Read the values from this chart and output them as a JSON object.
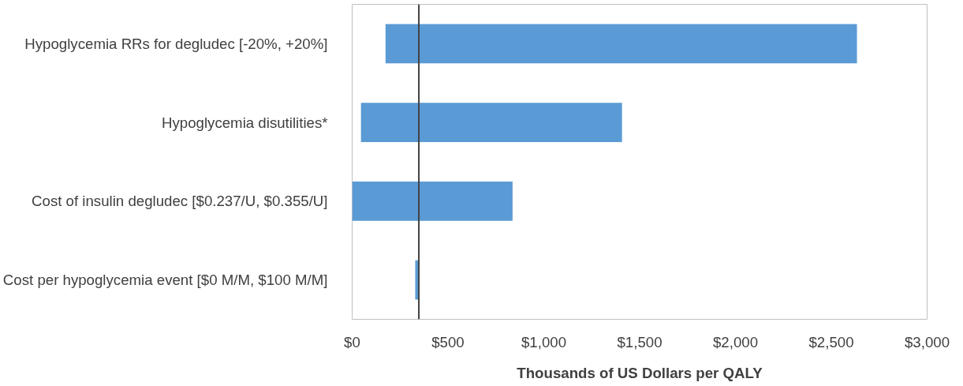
{
  "chart_data": {
    "type": "bar",
    "orientation": "horizontal",
    "xlabel": "Thousands of US Dollars per QALY",
    "categories": [
      "Hypoglycemia RRs for degludec [-20%, +20%]",
      "Hypoglycemia disutilities*",
      "Cost of insulin degludec [$0.237/U, $0.355/U]",
      "Cost per hypoglycemia event [$0 M/M, $100 M/M]"
    ],
    "values": [
      2460,
      1362,
      837,
      19
    ],
    "base": [
      174,
      46,
      0,
      329
    ],
    "color": "#5b9bd5",
    "xlim": [
      0,
      3000
    ],
    "xticks": [
      {
        "value": 0,
        "label": "$0"
      },
      {
        "value": 500,
        "label": "$500"
      },
      {
        "value": 1000,
        "label": "$1,000"
      },
      {
        "value": 1500,
        "label": "$1,500"
      },
      {
        "value": 2000,
        "label": "$2,000"
      },
      {
        "value": 2500,
        "label": "$2,500"
      },
      {
        "value": 3000,
        "label": "$3,000"
      }
    ],
    "ref_lines": [
      {
        "axis": "x",
        "value": 348,
        "color": "#404040"
      }
    ],
    "grid": false
  }
}
